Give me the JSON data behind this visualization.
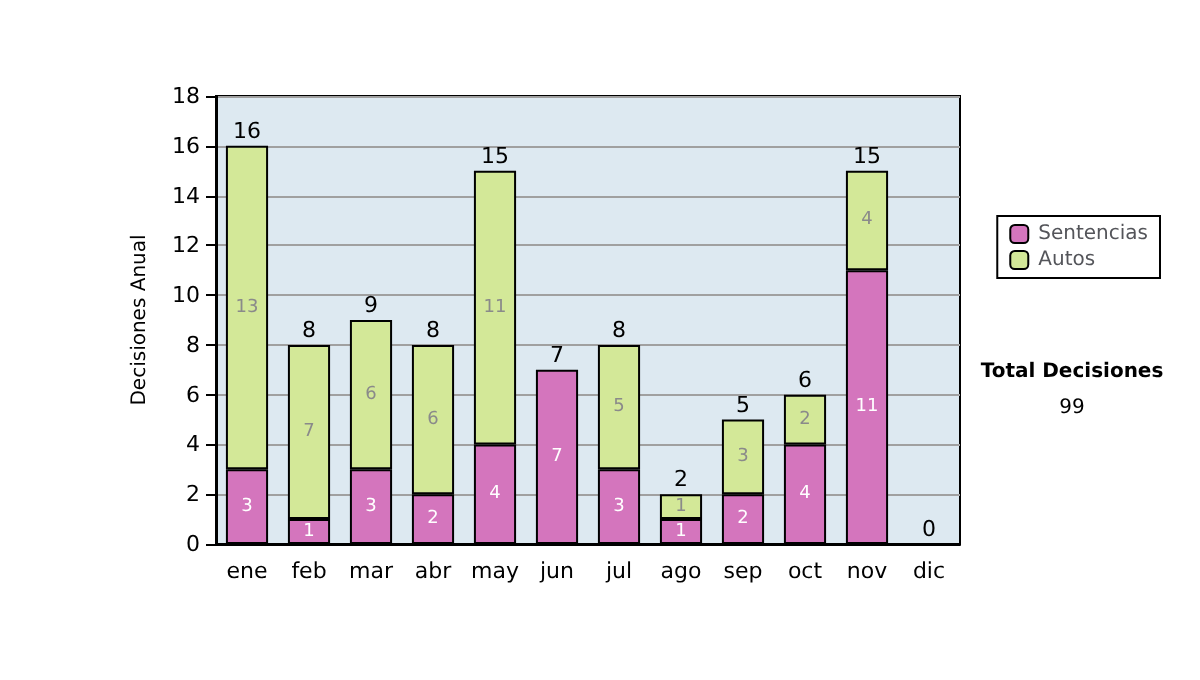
{
  "chart_data": {
    "type": "bar",
    "stacked": true,
    "ylabel": "Decisiones Anual",
    "categories": [
      "ene",
      "feb",
      "mar",
      "abr",
      "may",
      "jun",
      "jul",
      "ago",
      "sep",
      "oct",
      "nov",
      "dic"
    ],
    "series": [
      {
        "name": "Sentencias",
        "color": "#d475bd",
        "values": [
          3,
          1,
          3,
          2,
          4,
          7,
          3,
          1,
          2,
          4,
          11,
          0
        ],
        "value_labels": [
          "3",
          "1",
          "3",
          "2",
          "4",
          "7",
          "3",
          "1",
          "2",
          "4",
          "11",
          null
        ]
      },
      {
        "name": "Autos",
        "color": "#d3e898",
        "values": [
          13,
          7,
          6,
          6,
          11,
          0,
          5,
          1,
          3,
          2,
          4,
          0
        ],
        "value_labels": [
          "13",
          "7",
          "6",
          "6",
          "11",
          null,
          "5",
          "1",
          "3",
          "2",
          "4",
          null
        ]
      }
    ],
    "totals": [
      "16",
      "8",
      "9",
      "8",
      "15",
      "7",
      "8",
      "2",
      "5",
      "6",
      "15",
      "0"
    ],
    "ylim": [
      0,
      18
    ],
    "yticks": [
      0,
      2,
      4,
      6,
      8,
      10,
      12,
      14,
      16,
      18
    ],
    "grid": "y",
    "legend": "right",
    "annotations": [
      "Total Decisiones",
      "99"
    ]
  }
}
